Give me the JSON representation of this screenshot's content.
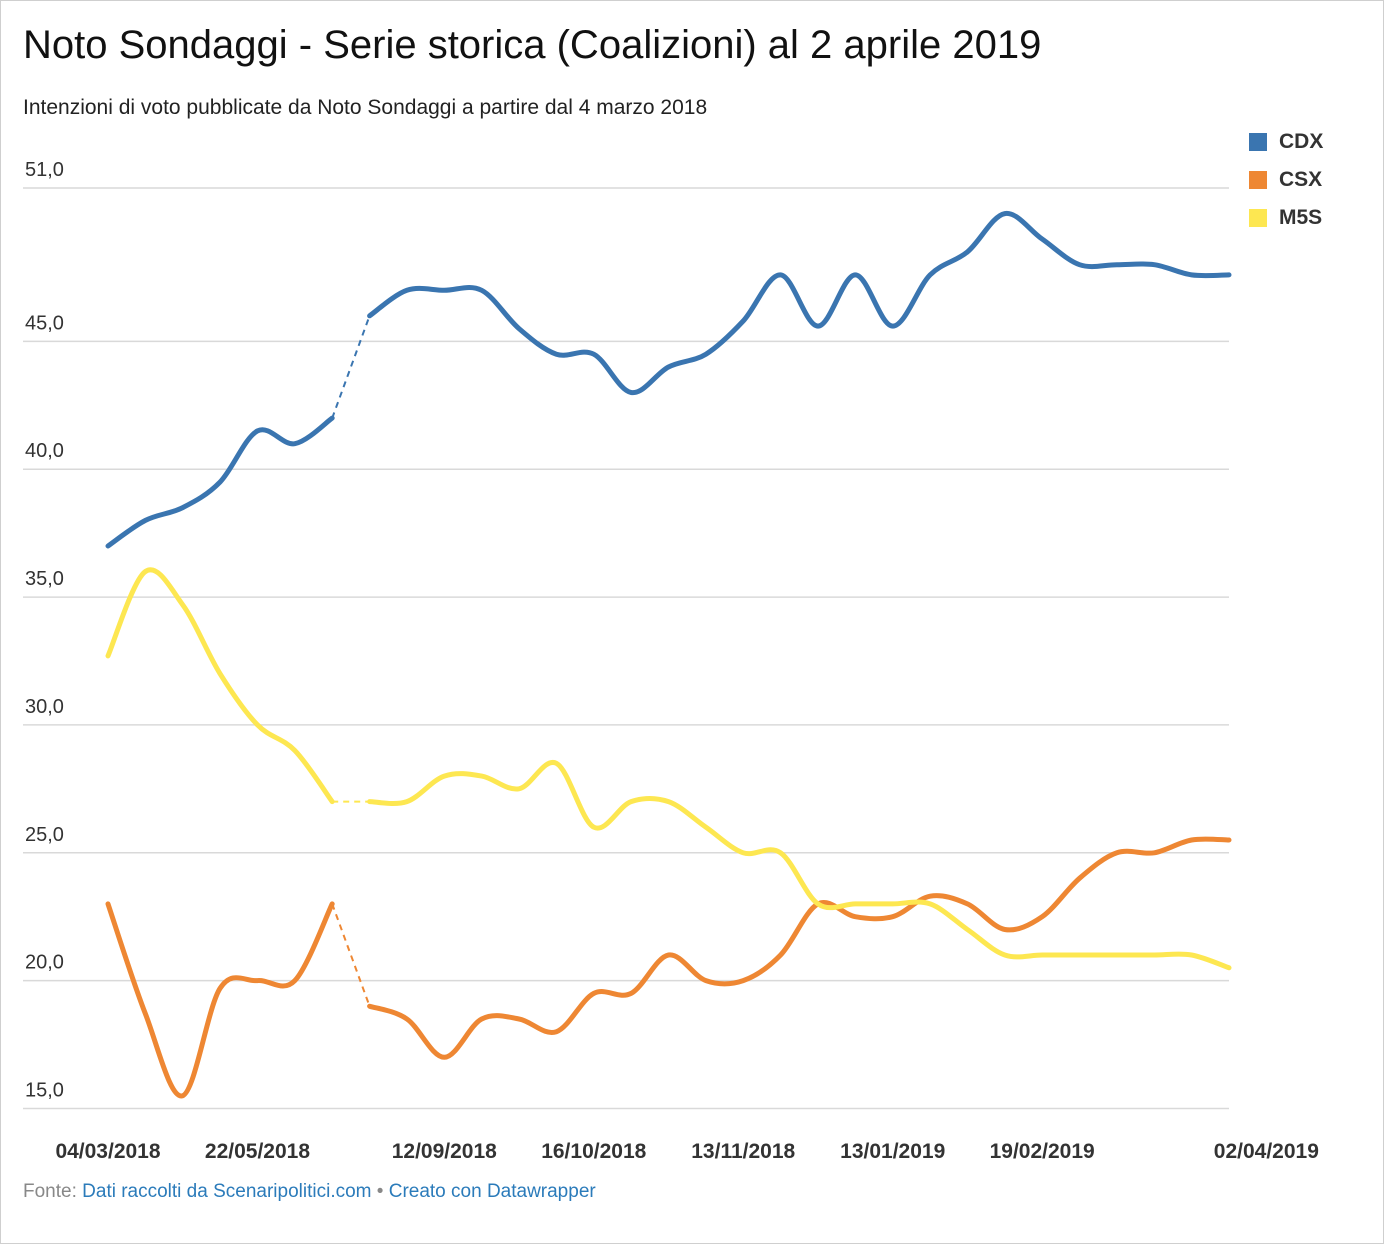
{
  "title": "Noto Sondaggi - Serie storica (Coalizioni) al 2 aprile 2019",
  "subtitle": "Intenzioni di voto pubblicate da Noto Sondaggi a partire dal 4 marzo 2018",
  "footer": {
    "prefix": "Fonte:",
    "source_link": "Dati raccolti da Scenaripolitici.com",
    "separator": "•",
    "credit_link": "Creato con Datawrapper"
  },
  "chart_data": {
    "type": "line",
    "title": "Noto Sondaggi - Serie storica (Coalizioni) al 2 aprile 2019",
    "xlabel": "",
    "ylabel": "",
    "ylim": [
      14.9,
      51.0
    ],
    "y_ticks": [
      15.0,
      20.0,
      25.0,
      30.0,
      35.0,
      40.0,
      45.0,
      51.0
    ],
    "y_tick_labels": [
      "15,0",
      "20,0",
      "25,0",
      "30,0",
      "35,0",
      "40,0",
      "45,0",
      "51,0"
    ],
    "x_tick_labels": [
      "04/03/2018",
      "22/05/2018",
      "12/09/2018",
      "16/10/2018",
      "13/11/2018",
      "13/01/2019",
      "19/02/2019",
      "02/04/2019"
    ],
    "x_tick_index": [
      0,
      4,
      9,
      13,
      17,
      21,
      25,
      31
    ],
    "grid": true,
    "legend": "top-right",
    "gap_after_index": 6,
    "series": [
      {
        "name": "CDX",
        "color": "#3a75b0",
        "values": [
          37.0,
          38.0,
          38.5,
          39.5,
          41.5,
          41.0,
          42.0,
          46.0,
          47.0,
          47.0,
          47.0,
          45.5,
          44.5,
          44.5,
          43.0,
          44.0,
          44.5,
          45.8,
          47.6,
          45.6,
          47.6,
          45.6,
          47.6,
          48.5,
          50.0,
          49.0,
          48.0,
          48.0,
          48.0,
          47.6,
          47.6
        ]
      },
      {
        "name": "CSX",
        "color": "#ee8733",
        "values": [
          23.0,
          18.7,
          15.5,
          19.7,
          20.0,
          20.0,
          23.0,
          19.0,
          18.5,
          17.0,
          18.5,
          18.5,
          18.0,
          19.5,
          19.5,
          21.0,
          20.0,
          20.0,
          21.0,
          23.0,
          22.5,
          22.5,
          23.3,
          23.0,
          22.0,
          22.5,
          24.0,
          25.0,
          25.0,
          25.5,
          25.5
        ]
      },
      {
        "name": "M5S",
        "color": "#fde751",
        "values": [
          32.7,
          36.0,
          34.7,
          32.0,
          30.0,
          29.0,
          27.0,
          27.0,
          27.0,
          28.0,
          28.0,
          27.5,
          28.5,
          26.0,
          27.0,
          27.0,
          26.0,
          25.0,
          25.0,
          23.0,
          23.0,
          23.0,
          23.0,
          22.0,
          21.0,
          21.0,
          21.0,
          21.0,
          21.0,
          21.0,
          20.5
        ]
      }
    ]
  }
}
